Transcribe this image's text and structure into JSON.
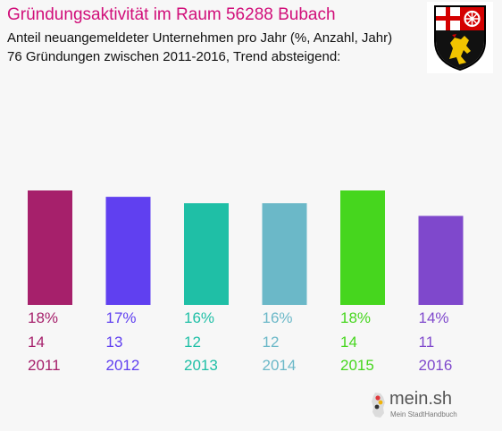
{
  "header": {
    "title": "Gründungsaktivität im Raum 56288 Bubach",
    "subtitle": "Anteil neuangemeldeter Unternehmen pro Jahr (%, Anzahl, Jahr)",
    "summary": "76 Gründungen zwischen 2011-2016, Trend absteigend:"
  },
  "crest": {
    "icon": "coat-of-arms-icon"
  },
  "logo": {
    "name": "mein.sh",
    "tagline": "Mein StadtHandbuch",
    "icon": "germany-map-icon"
  },
  "chart_data": {
    "type": "bar",
    "title": "Gründungsaktivität im Raum 56288 Bubach",
    "categories": [
      "2011",
      "2012",
      "2013",
      "2014",
      "2015",
      "2016"
    ],
    "values": [
      18,
      17,
      16,
      16,
      18,
      14
    ],
    "value_unit": "%",
    "counts": [
      14,
      13,
      12,
      12,
      14,
      11
    ],
    "percent_labels": [
      "18%",
      "17%",
      "16%",
      "16%",
      "18%",
      "14%"
    ],
    "count_labels": [
      "14",
      "13",
      "12",
      "12",
      "14",
      "11"
    ],
    "colors": [
      "#a6206b",
      "#6040f0",
      "#1fbfa6",
      "#6bb8c8",
      "#46d61e",
      "#7f48cc"
    ],
    "ylim": [
      0,
      18
    ],
    "grid": false,
    "legend": "none"
  }
}
